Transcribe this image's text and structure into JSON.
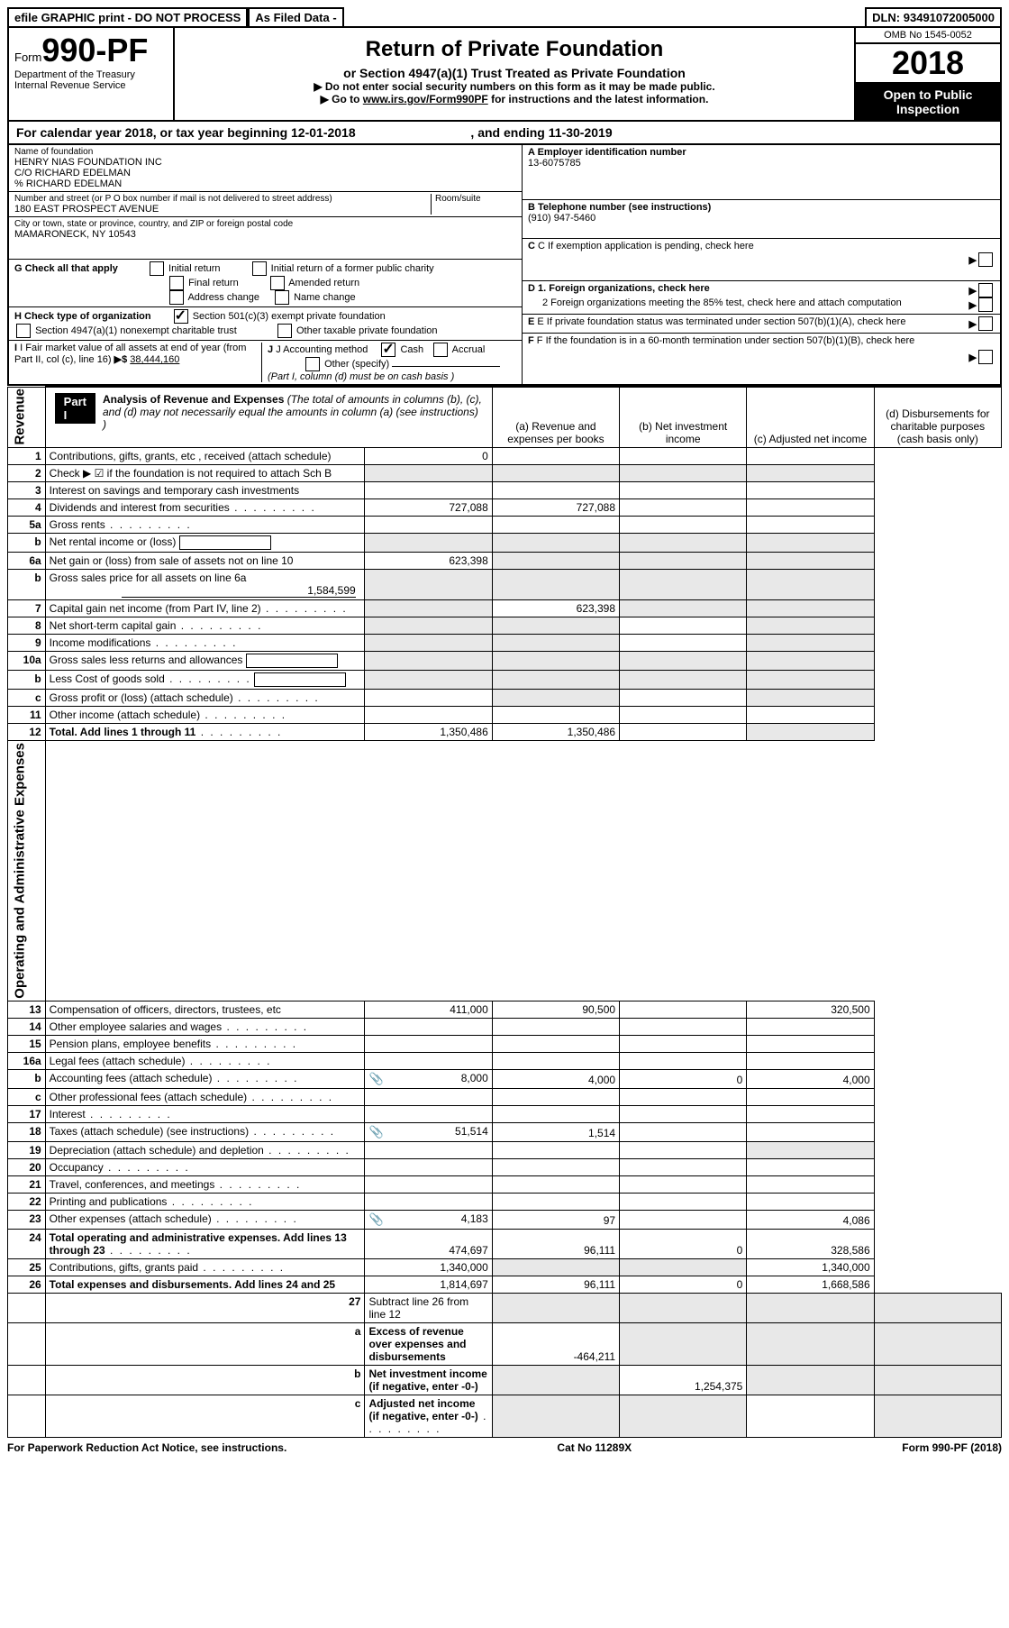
{
  "topbar": {
    "efile": "efile GRAPHIC print - DO NOT PROCESS",
    "asFiled": "As Filed Data -",
    "dln_label": "DLN:",
    "dln": "93491072005000"
  },
  "header": {
    "form_word": "Form",
    "form_num": "990-PF",
    "dept": "Department of the Treasury",
    "irs": "Internal Revenue Service",
    "title": "Return of Private Foundation",
    "sub1": "or Section 4947(a)(1) Trust Treated as Private Foundation",
    "sub2a": "▶ Do not enter social security numbers on this form as it may be made public.",
    "sub2b": "▶ Go to ",
    "sub2b_link": "www.irs.gov/Form990PF",
    "sub2b_tail": " for instructions and the latest information.",
    "omb": "OMB No 1545-0052",
    "year": "2018",
    "open": "Open to Public Inspection"
  },
  "cal": {
    "text1": "For calendar year 2018, or tax year beginning ",
    "begin": "12-01-2018",
    "text2": ", and ending ",
    "end": "11-30-2019"
  },
  "name": {
    "label": "Name of foundation",
    "l1": "HENRY NIAS FOUNDATION INC",
    "l2": "C/O RICHARD EDELMAN",
    "l3": "% RICHARD EDELMAN"
  },
  "addr": {
    "label": "Number and street (or P O  box number if mail is not delivered to street address)",
    "room": "Room/suite",
    "val": "180 EAST PROSPECT AVENUE",
    "city_label": "City or town, state or province, country, and ZIP or foreign postal code",
    "city": "MAMARONECK, NY  10543"
  },
  "A": {
    "label": "A Employer identification number",
    "val": "13-6075785"
  },
  "B": {
    "label": "B Telephone number (see instructions)",
    "val": "(910) 947-5460"
  },
  "C": {
    "label": "C If exemption application is pending, check here"
  },
  "D": {
    "d1": "D 1. Foreign organizations, check here",
    "d2": "2  Foreign organizations meeting the 85% test, check here and attach computation"
  },
  "E": {
    "label": "E  If private foundation status was terminated under section 507(b)(1)(A), check here"
  },
  "F": {
    "label": "F  If the foundation is in a 60-month termination under section 507(b)(1)(B), check here"
  },
  "G": {
    "label": "G Check all that apply",
    "c1": "Initial return",
    "c2": "Initial return of a former public charity",
    "c3": "Final return",
    "c4": "Amended return",
    "c5": "Address change",
    "c6": "Name change"
  },
  "H": {
    "label": "H Check type of organization",
    "c1": "Section 501(c)(3) exempt private foundation",
    "c2": "Section 4947(a)(1) nonexempt charitable trust",
    "c3": "Other taxable private foundation"
  },
  "I": {
    "label": "I Fair market value of all assets at end of year (from Part II, col  (c), line 16)",
    "amt": "38,444,160"
  },
  "J": {
    "label": "J Accounting method",
    "c1": "Cash",
    "c2": "Accrual",
    "c3": "Other (specify)",
    "note": "(Part I, column (d) must be on cash basis )"
  },
  "part1": {
    "badge": "Part I",
    "title": "Analysis of Revenue and Expenses",
    "note": "(The total of amounts in columns (b), (c), and (d) may not necessarily equal the amounts in column (a) (see instructions) )",
    "colA": "(a)  Revenue and expenses per books",
    "colB": "(b)  Net investment income",
    "colC": "(c)  Adjusted net income",
    "colD": "(d)  Disbursements for charitable purposes (cash basis only)"
  },
  "sideRev": "Revenue",
  "sideExp": "Operating and Administrative Expenses",
  "rows": [
    {
      "n": "1",
      "d": "Contributions, gifts, grants, etc , received (attach schedule)",
      "a": "0",
      "b": "",
      "c": "",
      "dd": ""
    },
    {
      "n": "2",
      "d": "Check ▶ ☑ if the foundation is not required to attach Sch  B",
      "a": "",
      "b": "",
      "c": "",
      "dd": "",
      "shadeAll": true,
      "boldNot": true
    },
    {
      "n": "3",
      "d": "Interest on savings and temporary cash investments",
      "a": "",
      "b": "",
      "c": "",
      "dd": ""
    },
    {
      "n": "4",
      "d": "Dividends and interest from securities",
      "a": "727,088",
      "b": "727,088",
      "c": "",
      "dd": "",
      "dots": true
    },
    {
      "n": "5a",
      "d": "Gross rents",
      "a": "",
      "b": "",
      "c": "",
      "dd": "",
      "dots": true
    },
    {
      "n": "b",
      "d": "Net rental income or (loss)",
      "a": "",
      "b": "",
      "c": "",
      "dd": "",
      "shadeAll": true,
      "inline": true
    },
    {
      "n": "6a",
      "d": "Net gain or (loss) from sale of assets not on line 10",
      "a": "623,398",
      "b": "",
      "c": "",
      "dd": "",
      "shadeBCD": true
    },
    {
      "n": "b",
      "d": "Gross sales price for all assets on line 6a",
      "sub": "1,584,599",
      "a": "",
      "b": "",
      "c": "",
      "dd": "",
      "shadeAll": true
    },
    {
      "n": "7",
      "d": "Capital gain net income (from Part IV, line 2)",
      "a": "",
      "b": "623,398",
      "c": "",
      "dd": "",
      "dots": true,
      "shadeA": true,
      "shadeCD": true
    },
    {
      "n": "8",
      "d": "Net short-term capital gain",
      "a": "",
      "b": "",
      "c": "",
      "dd": "",
      "dots": true,
      "shadeABD": true
    },
    {
      "n": "9",
      "d": "Income modifications",
      "a": "",
      "b": "",
      "c": "",
      "dd": "",
      "dots": true,
      "shadeABD": true
    },
    {
      "n": "10a",
      "d": "Gross sales less returns and allowances",
      "a": "",
      "b": "",
      "c": "",
      "dd": "",
      "shadeAll": true,
      "inline": true
    },
    {
      "n": "b",
      "d": "Less  Cost of goods sold",
      "a": "",
      "b": "",
      "c": "",
      "dd": "",
      "shadeAll": true,
      "inline": true,
      "dots": true
    },
    {
      "n": "c",
      "d": "Gross profit or (loss) (attach schedule)",
      "a": "",
      "b": "",
      "c": "",
      "dd": "",
      "dots": true,
      "shadeBD": true
    },
    {
      "n": "11",
      "d": "Other income (attach schedule)",
      "a": "",
      "b": "",
      "c": "",
      "dd": "",
      "dots": true
    },
    {
      "n": "12",
      "d": "Total. Add lines 1 through 11",
      "a": "1,350,486",
      "b": "1,350,486",
      "c": "",
      "dd": "",
      "dots": true,
      "bold": true,
      "shadeD": true
    }
  ],
  "rowsExp": [
    {
      "n": "13",
      "d": "Compensation of officers, directors, trustees, etc",
      "a": "411,000",
      "b": "90,500",
      "c": "",
      "dd": "320,500"
    },
    {
      "n": "14",
      "d": "Other employee salaries and wages",
      "a": "",
      "b": "",
      "c": "",
      "dd": "",
      "dots": true
    },
    {
      "n": "15",
      "d": "Pension plans, employee benefits",
      "a": "",
      "b": "",
      "c": "",
      "dd": "",
      "dots": true
    },
    {
      "n": "16a",
      "d": "Legal fees (attach schedule)",
      "a": "",
      "b": "",
      "c": "",
      "dd": "",
      "dots": true
    },
    {
      "n": "b",
      "d": "Accounting fees (attach schedule)",
      "a": "8,000",
      "b": "4,000",
      "c": "0",
      "dd": "4,000",
      "dots": true,
      "att": true
    },
    {
      "n": "c",
      "d": "Other professional fees (attach schedule)",
      "a": "",
      "b": "",
      "c": "",
      "dd": "",
      "dots": true
    },
    {
      "n": "17",
      "d": "Interest",
      "a": "",
      "b": "",
      "c": "",
      "dd": "",
      "dots": true
    },
    {
      "n": "18",
      "d": "Taxes (attach schedule) (see instructions)",
      "a": "51,514",
      "b": "1,514",
      "c": "",
      "dd": "",
      "dots": true,
      "att": true
    },
    {
      "n": "19",
      "d": "Depreciation (attach schedule) and depletion",
      "a": "",
      "b": "",
      "c": "",
      "dd": "",
      "dots": true,
      "shadeD": true
    },
    {
      "n": "20",
      "d": "Occupancy",
      "a": "",
      "b": "",
      "c": "",
      "dd": "",
      "dots": true
    },
    {
      "n": "21",
      "d": "Travel, conferences, and meetings",
      "a": "",
      "b": "",
      "c": "",
      "dd": "",
      "dots": true
    },
    {
      "n": "22",
      "d": "Printing and publications",
      "a": "",
      "b": "",
      "c": "",
      "dd": "",
      "dots": true
    },
    {
      "n": "23",
      "d": "Other expenses (attach schedule)",
      "a": "4,183",
      "b": "97",
      "c": "",
      "dd": "4,086",
      "dots": true,
      "att": true
    },
    {
      "n": "24",
      "d": "Total operating and administrative expenses. Add lines 13 through 23",
      "a": "474,697",
      "b": "96,111",
      "c": "0",
      "dd": "328,586",
      "dots": true,
      "bold": true
    },
    {
      "n": "25",
      "d": "Contributions, gifts, grants paid",
      "a": "1,340,000",
      "b": "",
      "c": "",
      "dd": "1,340,000",
      "dots": true,
      "shadeBC": true
    },
    {
      "n": "26",
      "d": "Total expenses and disbursements. Add lines 24 and 25",
      "a": "1,814,697",
      "b": "96,111",
      "c": "0",
      "dd": "1,668,586",
      "bold": true
    }
  ],
  "rows27": [
    {
      "n": "27",
      "d": "Subtract line 26 from line 12",
      "a": "",
      "b": "",
      "c": "",
      "dd": "",
      "shadeAll": true
    },
    {
      "n": "a",
      "d": "Excess of revenue over expenses and disbursements",
      "a": "-464,211",
      "b": "",
      "c": "",
      "dd": "",
      "bold": true,
      "shadeBCD": true
    },
    {
      "n": "b",
      "d": "Net investment income (if negative, enter -0-)",
      "a": "",
      "b": "1,254,375",
      "c": "",
      "dd": "",
      "bold": true,
      "shadeACD": true
    },
    {
      "n": "c",
      "d": "Adjusted net income (if negative, enter -0-)",
      "a": "",
      "b": "",
      "c": "",
      "dd": "",
      "bold": true,
      "dots": true,
      "shadeABD": true
    }
  ],
  "footer": {
    "left": "For Paperwork Reduction Act Notice, see instructions.",
    "mid": "Cat  No  11289X",
    "right": "Form 990-PF (2018)"
  }
}
